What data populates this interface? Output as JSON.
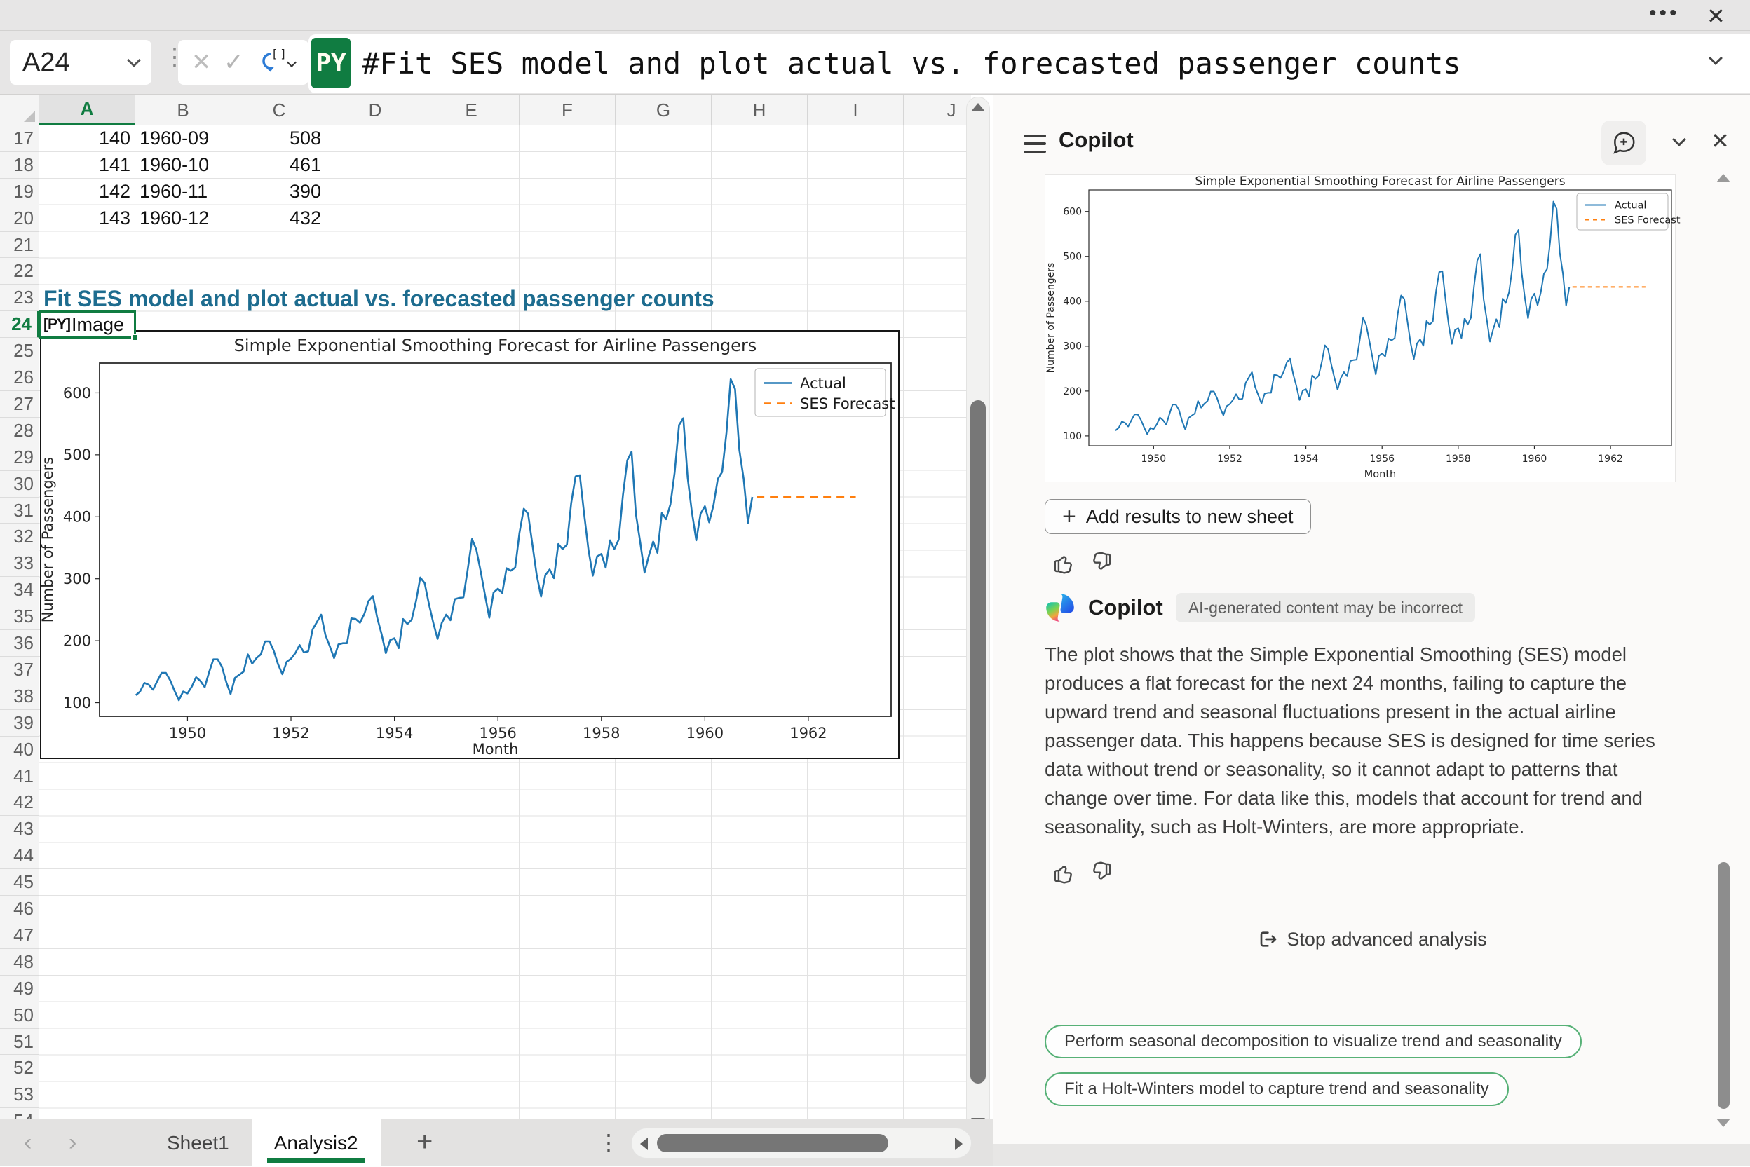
{
  "titlebar": {
    "more_icon": "•••",
    "close_icon": "✕"
  },
  "formula_bar": {
    "cell_reference": "A24",
    "cancel_icon": "✕",
    "confirm_icon": "✓",
    "language_badge": "PY",
    "formula": "#Fit SES model and plot actual vs. forecasted passenger counts"
  },
  "grid": {
    "column_headers": [
      "A",
      "B",
      "C",
      "D",
      "E",
      "F",
      "G",
      "H",
      "I",
      "J"
    ],
    "selected_column": "A",
    "first_row": 17,
    "last_row": 54,
    "selected_row": 24,
    "data_rows": [
      {
        "row": 17,
        "a": "140",
        "b": "1960-09",
        "c": "508"
      },
      {
        "row": 18,
        "a": "141",
        "b": "1960-10",
        "c": "461"
      },
      {
        "row": 19,
        "a": "142",
        "b": "1960-11",
        "c": "390"
      },
      {
        "row": 20,
        "a": "143",
        "b": "1960-12",
        "c": "432"
      }
    ],
    "heading": {
      "row": 23,
      "text": "Fit SES model and plot actual vs. forecasted passenger counts"
    },
    "active_cell": {
      "reference": "A24",
      "prefix": "[PY]",
      "value": "Image"
    }
  },
  "sheet_bar": {
    "prev_icon": "‹",
    "next_icon": "›",
    "tabs": [
      {
        "label": "Sheet1",
        "active": false
      },
      {
        "label": "Analysis2",
        "active": true
      }
    ],
    "add_tab_icon": "+",
    "dots_icon": "⋮"
  },
  "copilot": {
    "title": "Copilot",
    "add_results_button": "Add results to new sheet",
    "plus_icon": "+",
    "brand": "Copilot",
    "disclaimer": "AI-generated content may be incorrect",
    "message": "The plot shows that the Simple Exponential Smoothing (SES) model produces a flat forecast for the next 24 months, failing to capture the upward trend and seasonal fluctuations present in the actual airline passenger data. This happens because SES is designed for time series data without trend or seasonality, so it cannot adapt to patterns that change over time. For data like this, models that account for trend and seasonality, such as Holt-Winters, are more appropriate.",
    "stop_button": "Stop advanced analysis",
    "suggestions": [
      "Perform seasonal decomposition to visualize trend and seasonality",
      "Fit a Holt-Winters model to capture trend and seasonality"
    ],
    "close_icon": "✕"
  },
  "chart_data": {
    "type": "line",
    "title": "Simple Exponential Smoothing Forecast for Airline Passengers",
    "xlabel": "Month",
    "ylabel": "Number of Passengers",
    "x_start_year": 1949,
    "series": [
      {
        "name": "Actual",
        "color": "#1f77b4",
        "style": "solid",
        "values": [
          112,
          118,
          132,
          129,
          121,
          135,
          148,
          148,
          136,
          119,
          104,
          118,
          115,
          126,
          141,
          135,
          125,
          149,
          170,
          170,
          158,
          133,
          114,
          140,
          145,
          150,
          178,
          163,
          172,
          178,
          199,
          199,
          184,
          162,
          146,
          166,
          171,
          180,
          193,
          181,
          183,
          218,
          230,
          242,
          209,
          191,
          172,
          194,
          196,
          196,
          236,
          235,
          229,
          243,
          264,
          272,
          237,
          211,
          180,
          201,
          204,
          188,
          235,
          227,
          234,
          264,
          302,
          293,
          259,
          229,
          203,
          229,
          242,
          233,
          267,
          269,
          270,
          315,
          364,
          347,
          312,
          274,
          237,
          278,
          284,
          277,
          317,
          313,
          318,
          374,
          413,
          405,
          355,
          306,
          271,
          306,
          315,
          301,
          356,
          348,
          355,
          422,
          465,
          467,
          404,
          347,
          305,
          336,
          340,
          318,
          362,
          348,
          363,
          435,
          491,
          505,
          404,
          359,
          310,
          337,
          360,
          342,
          406,
          396,
          420,
          472,
          548,
          559,
          463,
          407,
          362,
          405,
          417,
          391,
          419,
          461,
          472,
          535,
          622,
          606,
          508,
          461,
          390,
          432
        ]
      },
      {
        "name": "SES Forecast",
        "color": "#ff7f0e",
        "style": "dashed",
        "start_year": 1961,
        "periods": 24,
        "value": 432
      }
    ],
    "xticks": [
      1950,
      1952,
      1954,
      1956,
      1958,
      1960,
      1962
    ],
    "yticks": [
      100,
      200,
      300,
      400,
      500,
      600
    ],
    "xlim": [
      1948.3,
      1963.6
    ],
    "ylim": [
      78,
      648
    ],
    "legend_position": "upper right",
    "grid": false
  },
  "colors": {
    "accent_green": "#107c41",
    "heading_blue": "#1d6c8f",
    "actual_line": "#1f77b4",
    "forecast_line": "#ff7f0e"
  }
}
